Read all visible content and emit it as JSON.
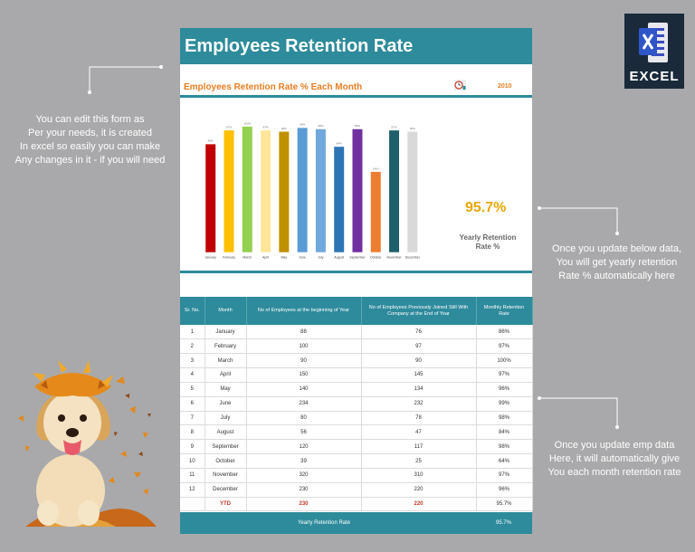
{
  "sheet": {
    "title": "Employees Retention Rate",
    "chart_title": "Employees Retention Rate % Each Month",
    "year": "2010",
    "yearly_value": "95.7%",
    "yearly_label": "Yearly Retention Rate %"
  },
  "chart_data": {
    "type": "bar",
    "categories": [
      "January",
      "February",
      "March",
      "April",
      "May",
      "June",
      "July",
      "August",
      "September",
      "October",
      "November",
      "December"
    ],
    "values": [
      86,
      97,
      100,
      97,
      96,
      99,
      98,
      84,
      98,
      64,
      97,
      96
    ],
    "value_labels": [
      "86%",
      "97%",
      "100%",
      "97%",
      "96%",
      "99%",
      "98%",
      "84%",
      "98%",
      "64%",
      "97%",
      "96%"
    ],
    "colors": [
      "#c00000",
      "#ffc000",
      "#92d050",
      "#ffe699",
      "#bf9000",
      "#5b9bd5",
      "#6fa8dc",
      "#2e75b6",
      "#7030a0",
      "#ed7d31",
      "#1f5f6b",
      "#d9d9d9"
    ],
    "title": "Employees Retention Rate % Each Month",
    "ylim": [
      0,
      100
    ]
  },
  "table": {
    "headers": [
      "Sr. No.",
      "Month",
      "No of Employees at the beginning of Year",
      "No of Employees Previously Joined Still With Company at the End of Year",
      "Monthly Retention Rate"
    ],
    "rows": [
      [
        "1",
        "January",
        "88",
        "76",
        "86%"
      ],
      [
        "2",
        "February",
        "100",
        "97",
        "97%"
      ],
      [
        "3",
        "March",
        "90",
        "90",
        "100%"
      ],
      [
        "4",
        "April",
        "150",
        "145",
        "97%"
      ],
      [
        "5",
        "May",
        "140",
        "134",
        "96%"
      ],
      [
        "6",
        "June",
        "234",
        "232",
        "99%"
      ],
      [
        "7",
        "July",
        "80",
        "78",
        "98%"
      ],
      [
        "8",
        "August",
        "56",
        "47",
        "84%"
      ],
      [
        "9",
        "September",
        "120",
        "117",
        "98%"
      ],
      [
        "10",
        "October",
        "39",
        "25",
        "64%"
      ],
      [
        "11",
        "November",
        "320",
        "310",
        "97%"
      ],
      [
        "12",
        "December",
        "230",
        "220",
        "96%"
      ]
    ],
    "ytd": {
      "label": "YTD",
      "begin": "230",
      "end": "220",
      "rate": "95.7%"
    }
  },
  "footer": {
    "label": "Yearly Retention Rate",
    "value": "95.7%"
  },
  "notes": {
    "left": [
      "You can edit this form as",
      "Per your needs, it is created",
      "In excel so easily you can make",
      "Any changes in it - if you will need"
    ],
    "right1": [
      "Once you update below data,",
      "You will get yearly retention",
      "Rate % automatically here"
    ],
    "right2": [
      "Once you update emp data",
      "Here, it will automatically give",
      "You each month retention rate"
    ]
  },
  "logo": {
    "text": "EXCEL"
  },
  "icons": {
    "clock": "clock-icon",
    "excel": "excel-icon",
    "puppy": "puppy-image"
  }
}
